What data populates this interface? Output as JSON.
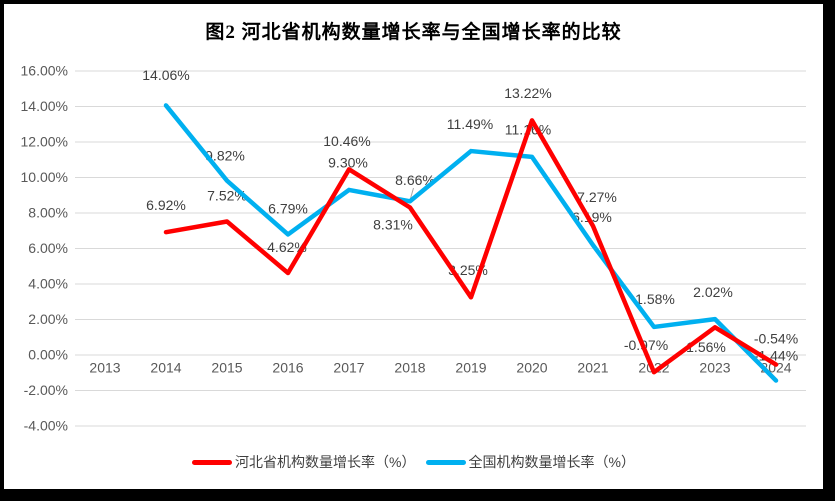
{
  "title": "图2 河北省机构数量增长率与全国增长率的比较",
  "colors": {
    "hebei_line": "#FF0000",
    "national_line": "#00B0F0",
    "gridline": "#D9D9D9",
    "axis_text": "#595959",
    "data_label_text": "#404040",
    "title_text": "#000000",
    "frame": "#000000",
    "background": "#FFFFFF"
  },
  "chart_data": {
    "type": "line",
    "title": "图2 河北省机构数量增长率与全国增长率的比较",
    "categories": [
      "2013",
      "2014",
      "2015",
      "2016",
      "2017",
      "2018",
      "2019",
      "2020",
      "2021",
      "2022",
      "2023",
      "2024"
    ],
    "series": [
      {
        "name": "河北省机构数量增长率（%）",
        "color": "#FF0000",
        "values": [
          null,
          6.92,
          7.52,
          4.62,
          10.46,
          8.31,
          3.25,
          13.22,
          7.27,
          -0.97,
          1.56,
          -0.54
        ],
        "data_labels": [
          null,
          "6.92%",
          "7.52%",
          "4.62%",
          "10.46%",
          "8.31%",
          "3.25%",
          "13.22%",
          "7.27%",
          "-0.97%",
          "1.56%",
          "-0.54%"
        ]
      },
      {
        "name": "全国机构数量增长率（%）",
        "color": "#00B0F0",
        "values": [
          null,
          14.06,
          9.82,
          6.79,
          9.3,
          8.66,
          11.49,
          11.16,
          6.19,
          1.58,
          2.02,
          -1.44
        ],
        "data_labels": [
          null,
          "14.06%",
          "9.82%",
          "6.79%",
          "9.30%",
          "8.66%",
          "11.49%",
          "11.16%",
          "6.19%",
          "1.58%",
          "2.02%",
          "-1.44%"
        ]
      }
    ],
    "y_axis": {
      "min": -4,
      "max": 16,
      "step": 2,
      "tick_labels": [
        "16.00%",
        "14.00%",
        "12.00%",
        "10.00%",
        "8.00%",
        "6.00%",
        "4.00%",
        "2.00%",
        "0.00%",
        "-2.00%",
        "-4.00%"
      ]
    },
    "grid": true,
    "legend_position": "bottom"
  }
}
